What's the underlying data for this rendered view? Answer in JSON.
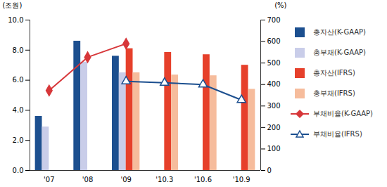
{
  "chart_data": {
    "type": "bar",
    "categories": [
      "'07",
      "'08",
      "'09",
      "'10.3",
      "'10.6",
      "'10.9"
    ],
    "y_label": "(조원)",
    "y2_label": "(%)",
    "ylim": [
      0,
      10
    ],
    "yticks": [
      {
        "value": 0,
        "label": "0.0"
      },
      {
        "value": 2,
        "label": "2.0"
      },
      {
        "value": 4,
        "label": "4.0"
      },
      {
        "value": 6,
        "label": "6.0"
      },
      {
        "value": 8,
        "label": "8.0"
      },
      {
        "value": 10,
        "label": "10.0"
      }
    ],
    "y2lim": [
      0,
      700
    ],
    "y2ticks": [
      0,
      100,
      200,
      300,
      400,
      500,
      600,
      700
    ],
    "legend": "right",
    "series": [
      {
        "name": "총자산(K-GAAP)",
        "type": "bar",
        "color": "#1c4f8f",
        "values": [
          3.6,
          8.6,
          7.6,
          null,
          null,
          null
        ]
      },
      {
        "name": "총부채(K-GAAP)",
        "type": "bar",
        "color": "#c9cde9",
        "values": [
          2.9,
          7.2,
          6.5,
          null,
          null,
          null
        ]
      },
      {
        "name": "총자산(IFRS)",
        "type": "bar",
        "color": "#e6402b",
        "values": [
          null,
          null,
          8.1,
          7.85,
          7.7,
          7.0
        ]
      },
      {
        "name": "총부채(IFRS)",
        "type": "bar",
        "color": "#f6bc9c",
        "values": [
          null,
          null,
          6.5,
          6.35,
          6.3,
          5.4
        ]
      },
      {
        "name": "부채비율(K-GAAP)",
        "type": "line",
        "axis": "y2",
        "color": "#d7373a",
        "marker": "diamond",
        "values": [
          372,
          527,
          590,
          null,
          null,
          null
        ]
      },
      {
        "name": "부채비율(IFRS)",
        "type": "line",
        "axis": "y2",
        "color": "#1c4f8f",
        "marker": "triangle-open",
        "values": [
          null,
          null,
          415,
          408,
          400,
          328
        ]
      }
    ]
  }
}
